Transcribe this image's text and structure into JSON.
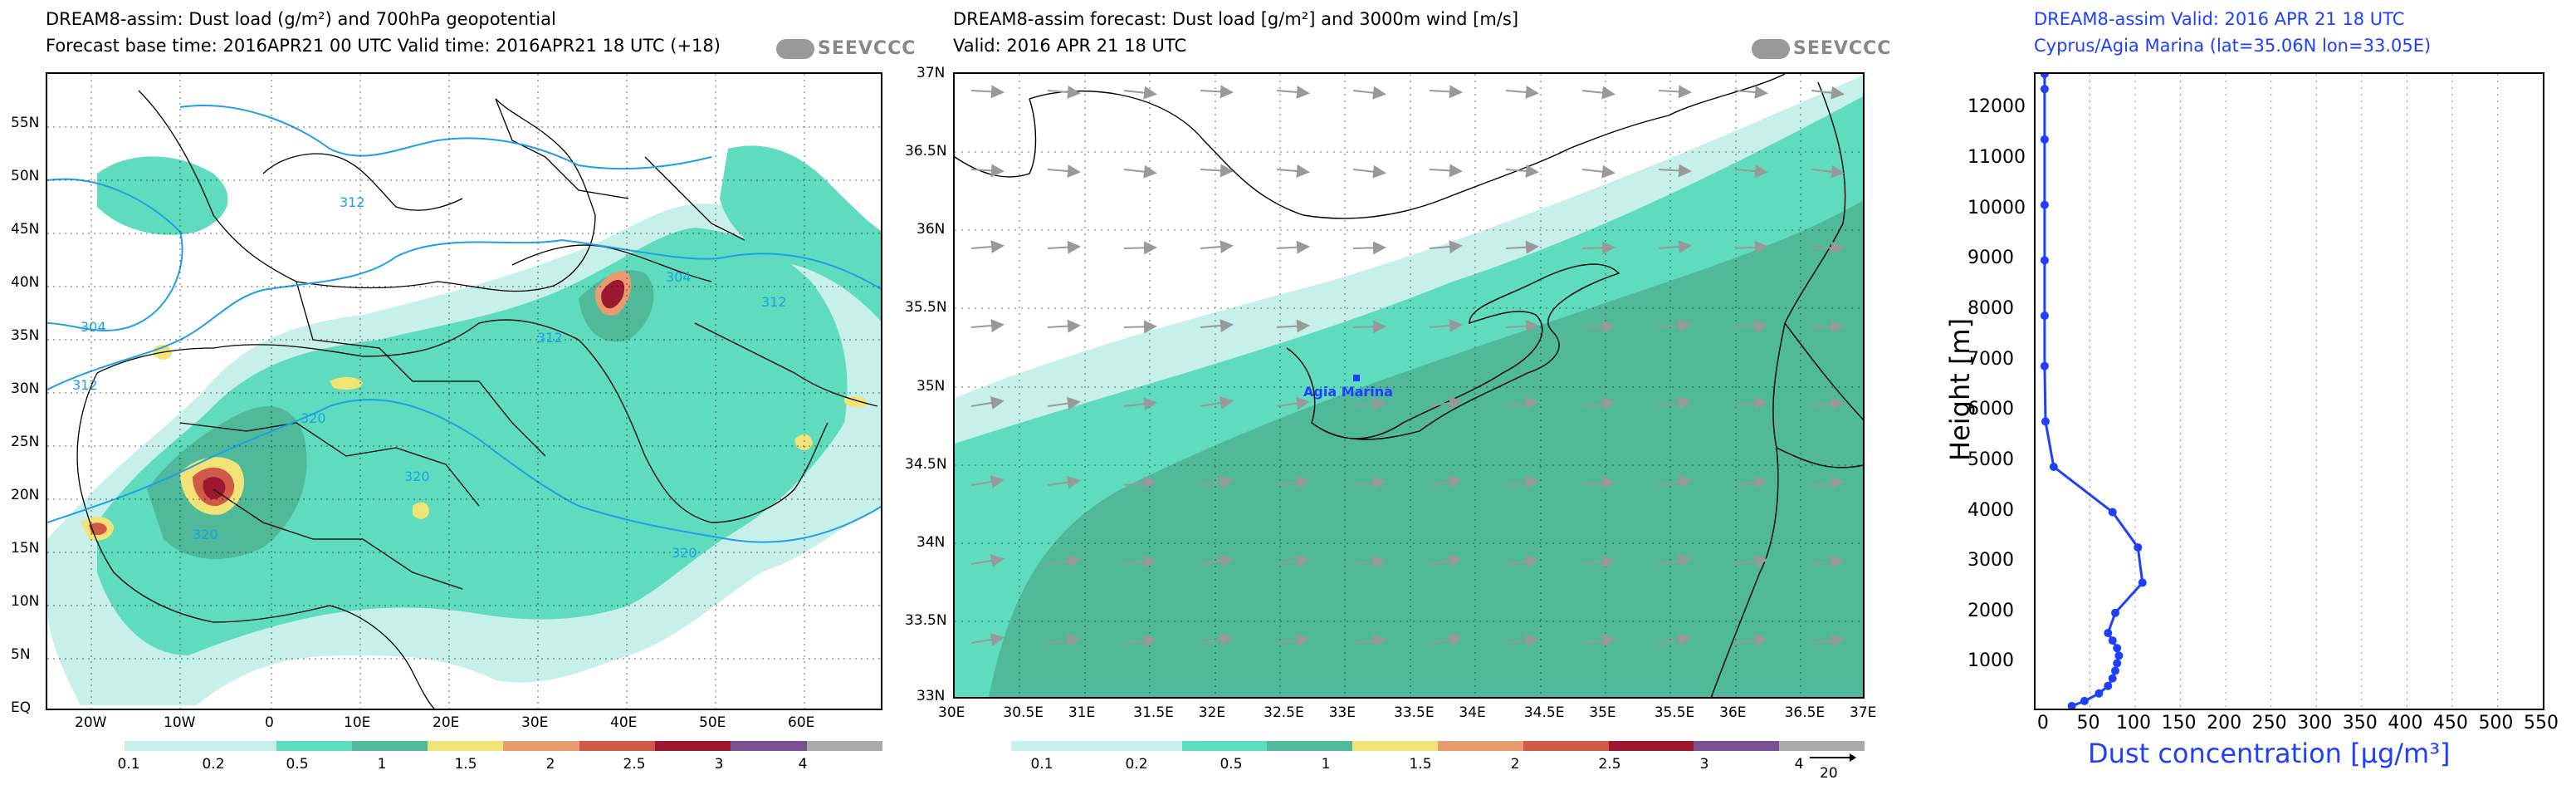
{
  "left_panel": {
    "title_line1": "DREAM8-assim: Dust load (g/m²) and 700hPa geopotential",
    "title_line2": "Forecast base time: 2016APR21 00 UTC   Valid time: 2016APR21 18 UTC   (+18)",
    "logo": "SEEVCCC",
    "lat_ticks": [
      "55N",
      "50N",
      "45N",
      "40N",
      "35N",
      "30N",
      "25N",
      "20N",
      "15N",
      "10N",
      "5N",
      "EQ"
    ],
    "lon_ticks": [
      "20W",
      "10W",
      "0",
      "10E",
      "20E",
      "30E",
      "40E",
      "50E",
      "60E"
    ],
    "contour_labels": [
      "312",
      "304",
      "312",
      "304",
      "312",
      "312",
      "320",
      "320",
      "320",
      "320"
    ],
    "colorbar_labels": [
      "0.1",
      "0.2",
      "0.5",
      "1",
      "1.5",
      "2",
      "2.5",
      "3",
      "4"
    ]
  },
  "middle_panel": {
    "title_line1": "DREAM8-assim forecast: Dust load [g/m²] and 3000m wind [m/s]",
    "title_line2": "Valid: 2016 APR 21   18 UTC",
    "logo": "SEEVCCC",
    "lat_ticks": [
      "37N",
      "36.5N",
      "36N",
      "35.5N",
      "35N",
      "34.5N",
      "34N",
      "33.5N",
      "33N"
    ],
    "lon_ticks": [
      "30E",
      "30.5E",
      "31E",
      "31.5E",
      "32E",
      "32.5E",
      "33E",
      "33.5E",
      "34E",
      "34.5E",
      "35E",
      "35.5E",
      "36E",
      "36.5E",
      "37E"
    ],
    "place_label": "Agia Marina",
    "colorbar_labels": [
      "0.1",
      "0.2",
      "0.5",
      "1",
      "1.5",
      "2",
      "2.5",
      "3",
      "4"
    ],
    "wind_ref": "20"
  },
  "right_panel": {
    "title_line1": "DREAM8-assim   Valid: 2016 APR 21   18 UTC",
    "title_line2": "Cyprus/Agia Marina (lat=35.06N lon=33.05E)",
    "ylabel": "Height [m]",
    "xlabel": "Dust concentration [μg/m³]",
    "y_ticks": [
      "12000",
      "11000",
      "10000",
      "9000",
      "8000",
      "7000",
      "6000",
      "5000",
      "4000",
      "3000",
      "2000",
      "1000"
    ],
    "x_ticks": [
      "0",
      "50",
      "100",
      "150",
      "200",
      "250",
      "300",
      "350",
      "400",
      "450",
      "500",
      "550"
    ]
  },
  "colors": {
    "dust_levels": [
      "#c8f0ea",
      "#5fdcbd",
      "#4fb99a",
      "#f2e377",
      "#e89b6e",
      "#cf5a48",
      "#9c1730",
      "#7a4f92",
      "#aaaaaa"
    ],
    "profile": "#1f3fff",
    "geopotential": "#1f9fe8"
  },
  "chart_data": {
    "type": "line",
    "title": "DREAM8-assim   Valid: 2016 APR 21   18 UTC",
    "xlabel": "Dust concentration [μg/m³]",
    "ylabel": "Height [m]",
    "xlim": [
      -10,
      550
    ],
    "ylim": [
      100,
      12700
    ],
    "grid": true,
    "series": [
      {
        "x": [
          30,
          44,
          60,
          70,
          75,
          78,
          80,
          82,
          80,
          75,
          70,
          78,
          108,
          103,
          75,
          10,
          1,
          0,
          0,
          0,
          0,
          0,
          0,
          0
        ],
        "y": [
          150,
          250,
          400,
          550,
          700,
          850,
          1000,
          1150,
          1300,
          1450,
          1600,
          2000,
          2600,
          3300,
          4000,
          4900,
          5800,
          6900,
          7900,
          9000,
          10100,
          11400,
          12400,
          12700
        ]
      }
    ]
  }
}
